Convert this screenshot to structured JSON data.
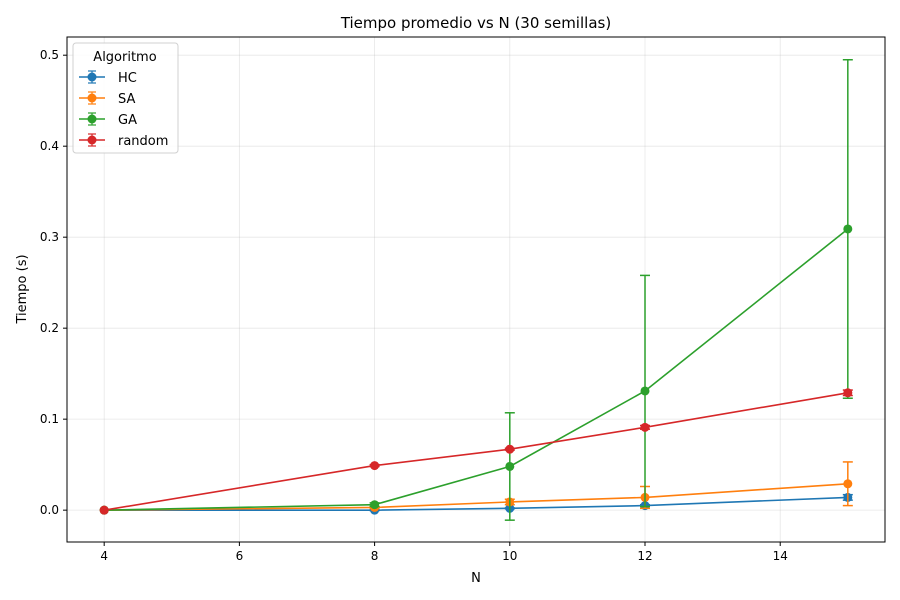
{
  "chart_data": {
    "type": "line",
    "title": "Tiempo promedio vs N (30 semillas)",
    "xlabel": "N",
    "ylabel": "Tiempo (s)",
    "xlim": [
      3.45,
      15.55
    ],
    "ylim": [
      -0.035,
      0.52
    ],
    "xticks": [
      4,
      6,
      8,
      10,
      12,
      14
    ],
    "xtick_labels": [
      "4",
      "6",
      "8",
      "10",
      "12",
      "14"
    ],
    "yticks": [
      0.0,
      0.1,
      0.2,
      0.3,
      0.4,
      0.5
    ],
    "ytick_labels": [
      "0.0",
      "0.1",
      "0.2",
      "0.3",
      "0.4",
      "0.5"
    ],
    "grid": true,
    "legend_title": "Algoritmo",
    "legend_position": "top-left",
    "x": [
      4,
      8,
      10,
      12,
      15
    ],
    "series": [
      {
        "name": "HC",
        "color": "#1f77b4",
        "values": [
          0.0,
          0.0,
          0.002,
          0.005,
          0.014
        ],
        "err": [
          0.0,
          0.0005,
          0.0005,
          0.001,
          0.003
        ]
      },
      {
        "name": "SA",
        "color": "#ff7f0e",
        "values": [
          0.0,
          0.003,
          0.009,
          0.014,
          0.029
        ],
        "err": [
          0.0,
          0.001,
          0.003,
          0.012,
          0.024
        ]
      },
      {
        "name": "GA",
        "color": "#2ca02c",
        "values": [
          0.0,
          0.006,
          0.048,
          0.131,
          0.309
        ],
        "err": [
          0.0,
          0.002,
          0.059,
          0.127,
          0.186
        ]
      },
      {
        "name": "random",
        "color": "#d62728",
        "values": [
          0.0,
          0.049,
          0.067,
          0.091,
          0.129
        ],
        "err": [
          0.0,
          0.001,
          0.001,
          0.002,
          0.003
        ]
      }
    ]
  }
}
